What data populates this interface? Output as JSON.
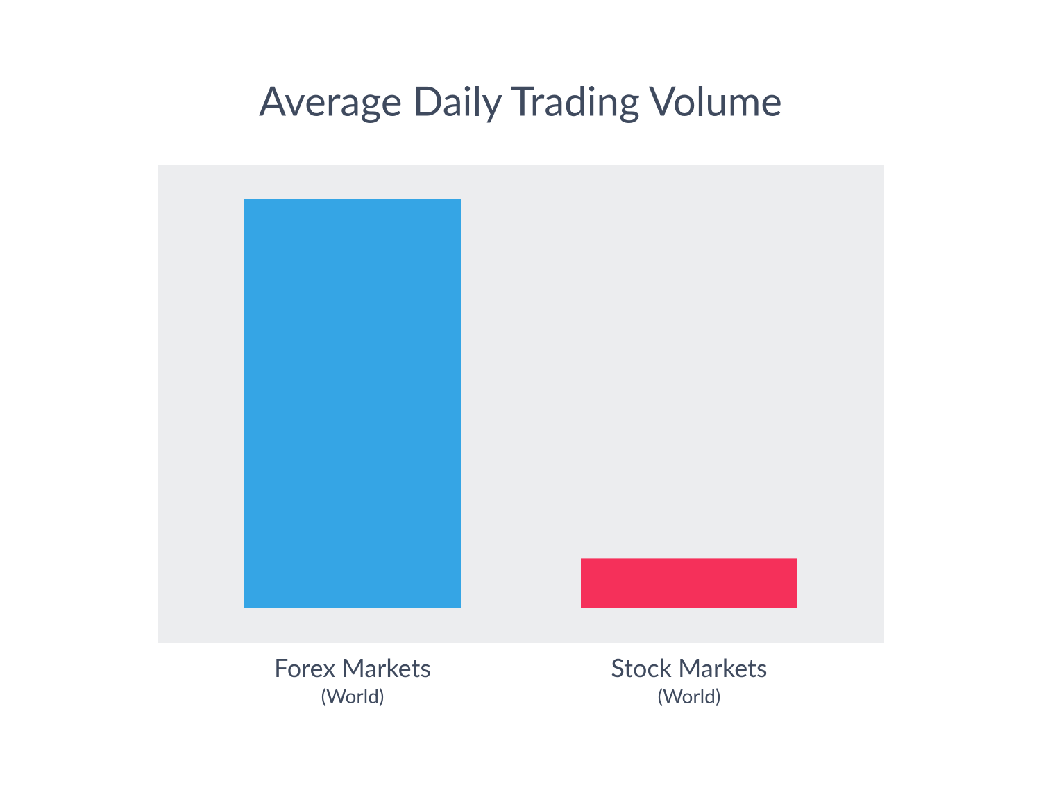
{
  "chart_data": {
    "type": "bar",
    "title": "Average Daily Trading Volume",
    "categories": [
      "Forex Markets",
      "Stock Markets"
    ],
    "category_sublabels": [
      "(World)",
      "(World)"
    ],
    "values": [
      5.1,
      0.62
    ],
    "colors": [
      "#35a5e5",
      "#f5305a"
    ]
  }
}
